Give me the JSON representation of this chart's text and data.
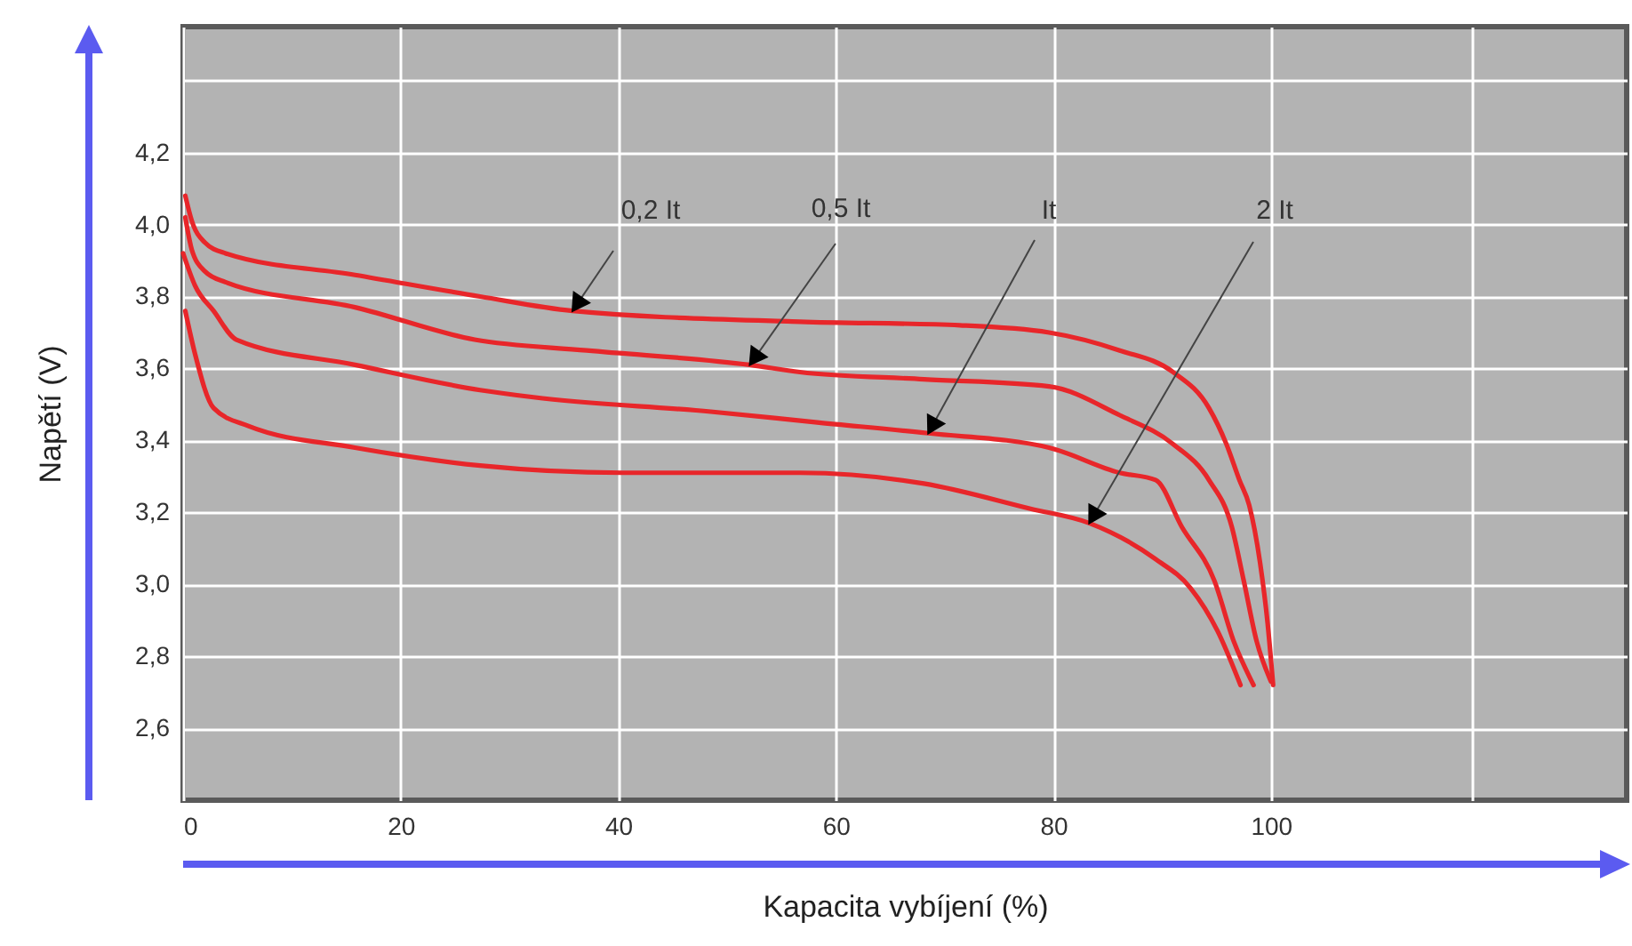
{
  "chart_data": {
    "type": "line",
    "xlabel": "Kapacita vybíjení (%)",
    "ylabel": "Napětí (V)",
    "xlim": [
      0,
      132.7
    ],
    "ylim": [
      2.4,
      4.55
    ],
    "xticks": [
      {
        "value": 0,
        "label": "0"
      },
      20,
      40,
      60,
      80,
      100,
      {
        "value": 118.5,
        "label": null
      }
    ],
    "yticks": [
      {
        "value": 2.6,
        "label": "2,6"
      },
      {
        "value": 2.8,
        "label": "2,8"
      },
      {
        "value": 3.0,
        "label": "3,0"
      },
      {
        "value": 3.2,
        "label": "3,2"
      },
      {
        "value": 3.4,
        "label": "3,4"
      },
      {
        "value": 3.6,
        "label": "3,6"
      },
      {
        "value": 3.8,
        "label": "3,8"
      },
      {
        "value": 4.0,
        "label": "4,0"
      },
      {
        "value": 4.2,
        "label": "4,2"
      },
      {
        "value": 4.4,
        "label": null
      }
    ],
    "grid": true,
    "annotations": [
      {
        "text": "0,2 It",
        "x": 35.8,
        "y": 3.76
      },
      {
        "text": "0,5 It",
        "x": 52.1,
        "y": 3.61
      },
      {
        "text": "It",
        "x": 68.5,
        "y": 3.42
      },
      {
        "text": "2 It",
        "x": 83.3,
        "y": 3.17
      }
    ],
    "series": [
      {
        "color": "#e8262a",
        "x": [
          0.2,
          0.8,
          2,
          3.9,
          15.8,
          27.3,
          35.8,
          56.7,
          71.4,
          79.6,
          86.1,
          91,
          94.3,
          95.9,
          97.1,
          98,
          99,
          99.7,
          100.2
        ],
        "values": [
          4.08,
          4.01,
          3.95,
          3.92,
          3.86,
          3.8,
          3.76,
          3.73,
          3.72,
          3.7,
          3.65,
          3.59,
          3.49,
          3.39,
          3.29,
          3.22,
          3.06,
          2.89,
          2.72
        ]
      },
      {
        "color": "#e8262a",
        "x": [
          0.2,
          0.8,
          2,
          3.9,
          15.8,
          26.8,
          37.1,
          52.1,
          56.7,
          68.1,
          79.6,
          86.1,
          91,
          94.3,
          96.4,
          97.5,
          98.7,
          100
        ],
        "values": [
          4.02,
          3.93,
          3.87,
          3.84,
          3.77,
          3.68,
          3.65,
          3.61,
          3.59,
          3.57,
          3.55,
          3.47,
          3.39,
          3.29,
          3.16,
          3.01,
          2.84,
          2.73
        ]
      },
      {
        "color": "#e8262a",
        "x": [
          0,
          1.1,
          2.8,
          4.9,
          15.8,
          27.3,
          32.2,
          48.5,
          58.3,
          68.5,
          79.6,
          86.1,
          89.4,
          91.8,
          94.8,
          96.6,
          98.4
        ],
        "values": [
          3.92,
          3.83,
          3.76,
          3.68,
          3.61,
          3.54,
          3.52,
          3.48,
          3.45,
          3.42,
          3.38,
          3.31,
          3.29,
          3.16,
          3.01,
          2.84,
          2.72
        ]
      },
      {
        "color": "#e8262a",
        "x": [
          0.2,
          1.1,
          2.8,
          6,
          15.8,
          27.3,
          40.4,
          56.7,
          68.1,
          77.9,
          83.3,
          89.4,
          92.6,
          95.1,
          97.2
        ],
        "values": [
          3.76,
          3.64,
          3.49,
          3.44,
          3.38,
          3.33,
          3.31,
          3.31,
          3.28,
          3.21,
          3.17,
          3.07,
          2.99,
          2.87,
          2.72
        ]
      }
    ]
  }
}
